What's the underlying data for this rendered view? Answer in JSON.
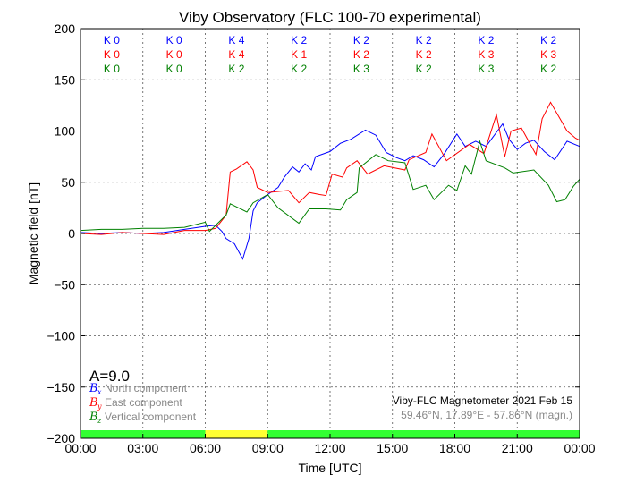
{
  "chart_data": {
    "type": "line",
    "title": "Viby Observatory (FLC 100-70 experimental)",
    "xlabel": "Time [UTC]",
    "ylabel": "Magnetic field [nT]",
    "xlim": [
      0,
      24
    ],
    "ylim": [
      -200,
      200
    ],
    "xticks": [
      0,
      3,
      6,
      9,
      12,
      15,
      18,
      21,
      24
    ],
    "xtick_labels": [
      "00:00",
      "03:00",
      "06:00",
      "09:00",
      "12:00",
      "15:00",
      "18:00",
      "21:00",
      "00:00"
    ],
    "yticks": [
      -200,
      -150,
      -100,
      -50,
      0,
      50,
      100,
      150,
      200
    ],
    "ytick_labels": [
      "−200",
      "−150",
      "−100",
      "−50",
      "0",
      "50",
      "100",
      "150",
      "200"
    ],
    "grid": true,
    "annotation_a_index": "A=9.0",
    "info_line1": "Viby-FLC Magnetometer 2021 Feb 15",
    "info_line2": "59.46°N, 17.89°E - 57.86°N (magn.)",
    "legend_position": "bottom-left",
    "series": [
      {
        "name": "North component",
        "symbol": "B",
        "sub": "x",
        "color": "#0000ff",
        "k": [
          "K 0",
          "K 0",
          "K 4",
          "K 2",
          "K 2",
          "K 2",
          "K 2",
          "K 2"
        ],
        "points": [
          [
            0,
            1
          ],
          [
            1,
            0
          ],
          [
            2,
            1
          ],
          [
            3,
            0
          ],
          [
            4,
            1
          ],
          [
            5,
            4
          ],
          [
            6,
            7
          ],
          [
            6.5,
            8
          ],
          [
            6.8,
            2
          ],
          [
            7,
            -5
          ],
          [
            7.4,
            -10
          ],
          [
            7.8,
            -25
          ],
          [
            8.1,
            -5
          ],
          [
            8.3,
            22
          ],
          [
            8.5,
            30
          ],
          [
            9,
            38
          ],
          [
            9.5,
            45
          ],
          [
            9.8,
            55
          ],
          [
            10.2,
            65
          ],
          [
            10.5,
            60
          ],
          [
            10.8,
            68
          ],
          [
            11.1,
            62
          ],
          [
            11.3,
            75
          ],
          [
            12,
            80
          ],
          [
            12.5,
            88
          ],
          [
            13,
            92
          ],
          [
            13.7,
            101
          ],
          [
            14.2,
            96
          ],
          [
            14.7,
            79
          ],
          [
            15.2,
            74
          ],
          [
            15.6,
            71
          ],
          [
            16,
            76
          ],
          [
            16.5,
            72
          ],
          [
            17,
            65
          ],
          [
            17.5,
            78
          ],
          [
            18.1,
            97
          ],
          [
            18.5,
            85
          ],
          [
            19,
            90
          ],
          [
            19.5,
            85
          ],
          [
            20.3,
            107
          ],
          [
            20.6,
            92
          ],
          [
            21,
            82
          ],
          [
            21.4,
            88
          ],
          [
            21.8,
            91
          ],
          [
            22.3,
            80
          ],
          [
            22.8,
            72
          ],
          [
            23.4,
            90
          ],
          [
            24,
            85
          ]
        ]
      },
      {
        "name": "East component",
        "symbol": "B",
        "sub": "y",
        "color": "#ff0000",
        "k": [
          "K 0",
          "K 0",
          "K 4",
          "K 1",
          "K 2",
          "K 2",
          "K 3",
          "K 3"
        ],
        "points": [
          [
            0,
            0
          ],
          [
            1,
            -1
          ],
          [
            2,
            1
          ],
          [
            3,
            0
          ],
          [
            4,
            -1
          ],
          [
            5,
            3
          ],
          [
            6,
            3
          ],
          [
            6.5,
            5
          ],
          [
            7,
            18
          ],
          [
            7.2,
            60
          ],
          [
            7.5,
            63
          ],
          [
            8,
            70
          ],
          [
            8.3,
            62
          ],
          [
            8.5,
            45
          ],
          [
            9,
            40
          ],
          [
            10,
            42
          ],
          [
            10.5,
            30
          ],
          [
            11,
            40
          ],
          [
            11.5,
            38
          ],
          [
            11.8,
            37
          ],
          [
            12.1,
            58
          ],
          [
            12.6,
            55
          ],
          [
            12.8,
            64
          ],
          [
            13.3,
            71
          ],
          [
            13.8,
            58
          ],
          [
            14.6,
            66
          ],
          [
            15.6,
            62
          ],
          [
            15.8,
            72
          ],
          [
            16.6,
            79
          ],
          [
            16.9,
            97
          ],
          [
            17.6,
            71
          ],
          [
            18.7,
            87
          ],
          [
            19.4,
            78
          ],
          [
            20,
            116
          ],
          [
            20.4,
            75
          ],
          [
            20.7,
            100
          ],
          [
            21.2,
            103
          ],
          [
            21.9,
            77
          ],
          [
            22.2,
            112
          ],
          [
            22.6,
            128
          ],
          [
            23.4,
            100
          ],
          [
            23.8,
            93
          ],
          [
            24,
            91
          ]
        ]
      },
      {
        "name": "Vertical component",
        "symbol": "B",
        "sub": "z",
        "color": "#008000",
        "k": [
          "K 0",
          "K 0",
          "K 2",
          "K 2",
          "K 3",
          "K 2",
          "K 3",
          "K 2"
        ],
        "points": [
          [
            0,
            3
          ],
          [
            1,
            4
          ],
          [
            2,
            4
          ],
          [
            3,
            5
          ],
          [
            4,
            5
          ],
          [
            5,
            6
          ],
          [
            6,
            11
          ],
          [
            6.2,
            2
          ],
          [
            7,
            18
          ],
          [
            7.2,
            29
          ],
          [
            8,
            21
          ],
          [
            8.3,
            30
          ],
          [
            9,
            38
          ],
          [
            9.5,
            25
          ],
          [
            10.5,
            10
          ],
          [
            11,
            24
          ],
          [
            11.8,
            24
          ],
          [
            12.5,
            23
          ],
          [
            12.8,
            33
          ],
          [
            13.3,
            40
          ],
          [
            13.4,
            64
          ],
          [
            14.2,
            77
          ],
          [
            14.8,
            71
          ],
          [
            15.6,
            69
          ],
          [
            16,
            43
          ],
          [
            16.6,
            47
          ],
          [
            17,
            33
          ],
          [
            17.7,
            47
          ],
          [
            18.1,
            42
          ],
          [
            18.5,
            66
          ],
          [
            18.8,
            58
          ],
          [
            19.2,
            90
          ],
          [
            19.5,
            71
          ],
          [
            20.4,
            64
          ],
          [
            20.8,
            59
          ],
          [
            21.8,
            62
          ],
          [
            22.5,
            47
          ],
          [
            22.9,
            31
          ],
          [
            23.3,
            33
          ],
          [
            23.7,
            46
          ],
          [
            24,
            53
          ]
        ]
      }
    ],
    "activity_bar": {
      "levels": [
        "quiet",
        "quiet",
        "elevated",
        "quiet",
        "quiet",
        "quiet",
        "quiet",
        "quiet"
      ],
      "colors": {
        "quiet": "#33ff33",
        "elevated": "#ffff33"
      }
    }
  }
}
